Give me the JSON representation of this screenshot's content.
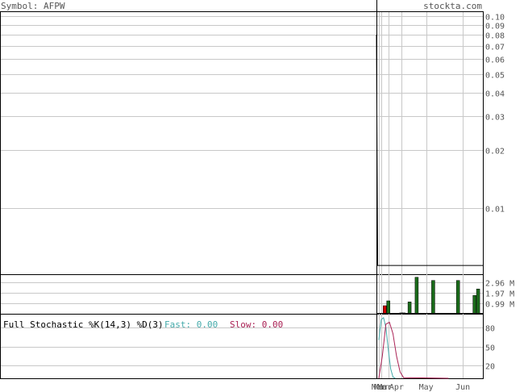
{
  "header": {
    "symbol_label": "Symbol: AFPW",
    "site": "stockta.com"
  },
  "colors": {
    "grid": "#c8c8c8",
    "border": "#000000",
    "text": "#555555",
    "vol_up": "#1a6b1a",
    "vol_down": "#cc0000",
    "fast": "#44aaaa",
    "slow": "#aa2255",
    "price_line": "#000000"
  },
  "chart_data": [
    {
      "type": "line",
      "panel": "price",
      "scale": "log",
      "ylim": [
        0.0045,
        0.105
      ],
      "yticks": [
        0.1,
        0.09,
        0.08,
        0.07,
        0.06,
        0.05,
        0.04,
        0.03,
        0.02,
        0.01
      ],
      "ytick_labels": [
        "0.10",
        "0.09",
        "0.08",
        "0.07",
        "0.06",
        "0.05",
        "0.04",
        "0.03",
        "0.02",
        "0.01"
      ],
      "grid": true,
      "series": [
        {
          "x": [
            "Mar 20",
            "Mar 21",
            "Mar 22",
            "Mar 23",
            "Jun 18"
          ],
          "y": [
            0.08,
            0.005,
            0.005,
            0.005,
            0.005
          ]
        }
      ]
    },
    {
      "type": "bar",
      "panel": "volume",
      "ylim": [
        0,
        3.6
      ],
      "yticks": [
        2.96,
        1.97,
        0.99
      ],
      "ytick_labels": [
        "2.96 M",
        "1.97 M",
        "0.99 M"
      ],
      "grid": true,
      "bars": [
        {
          "x": "Mar 27",
          "value": 0.75,
          "dir": "down"
        },
        {
          "x": "Mar 30",
          "value": 1.2,
          "dir": "up"
        },
        {
          "x": "Apr 10",
          "value": 0.08,
          "dir": "up"
        },
        {
          "x": "Apr 12",
          "value": 0.08,
          "dir": "up"
        },
        {
          "x": "Apr 17",
          "value": 1.1,
          "dir": "up"
        },
        {
          "x": "Apr 23",
          "value": 3.4,
          "dir": "up"
        },
        {
          "x": "May 7",
          "value": 3.1,
          "dir": "up"
        },
        {
          "x": "May 28",
          "value": 3.1,
          "dir": "up"
        },
        {
          "x": "Jun 11",
          "value": 1.7,
          "dir": "up"
        },
        {
          "x": "Jun 14",
          "value": 2.3,
          "dir": "up"
        }
      ]
    },
    {
      "type": "line",
      "panel": "stochastic",
      "title": "Full Stochastic %K(14,3) %D(3)",
      "ylim": [
        0,
        100
      ],
      "yticks": [
        80,
        50,
        20
      ],
      "ytick_labels": [
        "80",
        "50",
        "20"
      ],
      "grid": true,
      "legend": [
        {
          "label": "Fast: ",
          "value": "0.00",
          "color": "#44aaaa"
        },
        {
          "label": "Slow: ",
          "value": "0.00",
          "color": "#aa2255"
        }
      ],
      "series": [
        {
          "name": "Fast",
          "x": [
            "Mar 22",
            "Mar 24",
            "Mar 26",
            "Mar 28",
            "Mar 30",
            "Apr 1",
            "Apr 3",
            "Apr 5"
          ],
          "y": [
            60,
            92,
            95,
            80,
            45,
            15,
            2,
            0
          ]
        },
        {
          "name": "Slow",
          "x": [
            "Mar 22",
            "Mar 25",
            "Mar 28",
            "Mar 31",
            "Apr 3",
            "Apr 6",
            "Apr 9",
            "Apr 12",
            "May 20"
          ],
          "y": [
            0,
            35,
            85,
            88,
            70,
            35,
            10,
            1,
            0
          ]
        }
      ]
    }
  ],
  "x_axis": {
    "start": "Mar 20",
    "end": "Jun 18",
    "vlines": [
      "Mar 20",
      "Mar 22",
      "Mar 24",
      "Mar 30",
      "Apr 10",
      "May 1",
      "Jun 1"
    ],
    "labels": [
      {
        "text": "Mar",
        "at": "Mar 22"
      },
      {
        "text": "Mar",
        "at": "Mar 24"
      },
      {
        "text": "Mar",
        "at": "Mar 27"
      },
      {
        "text": "Apr",
        "at": "Apr 6"
      },
      {
        "text": "May",
        "at": "May 1"
      },
      {
        "text": "Jun",
        "at": "Jun 1"
      }
    ]
  }
}
